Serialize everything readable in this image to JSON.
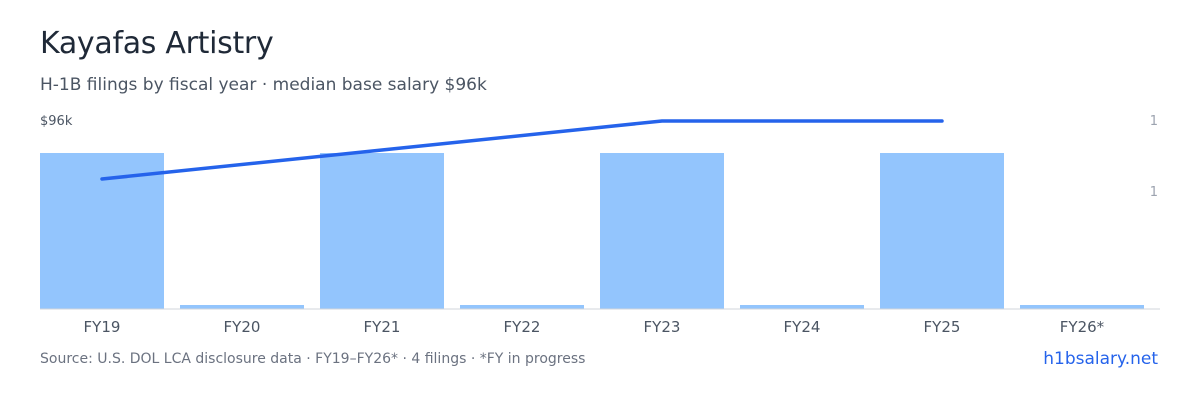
{
  "header": {
    "title": "Kayafas Artistry",
    "subtitle": "H-1B filings by fiscal year · median base salary $96k"
  },
  "chart_data": {
    "type": "bar",
    "categories": [
      "FY19",
      "FY20",
      "FY21",
      "FY22",
      "FY23",
      "FY24",
      "FY25",
      "FY26*"
    ],
    "series": [
      {
        "values": [
          1,
          0,
          1,
          0,
          1,
          0,
          1,
          0
        ],
        "axis": "right",
        "color": "#93c5fd"
      },
      {
        "type": "line",
        "values": [
          92,
          null,
          94,
          null,
          96,
          null,
          96,
          null
        ],
        "axis": "left",
        "color": "#2563eb"
      }
    ],
    "left_axis": {
      "tick_label": "$96k",
      "tick_value": 96
    },
    "right_axis": {
      "tick_labels": [
        "1",
        "1"
      ]
    },
    "grid": false,
    "legend": "none"
  },
  "footer": {
    "source": "Source: U.S. DOL LCA disclosure data · FY19–FY26* · 4 filings · *FY in progress",
    "brand": "h1bsalary.net"
  },
  "colors": {
    "bar": "#93c5fd",
    "line": "#2563eb",
    "baseline": "#d1d5db"
  }
}
